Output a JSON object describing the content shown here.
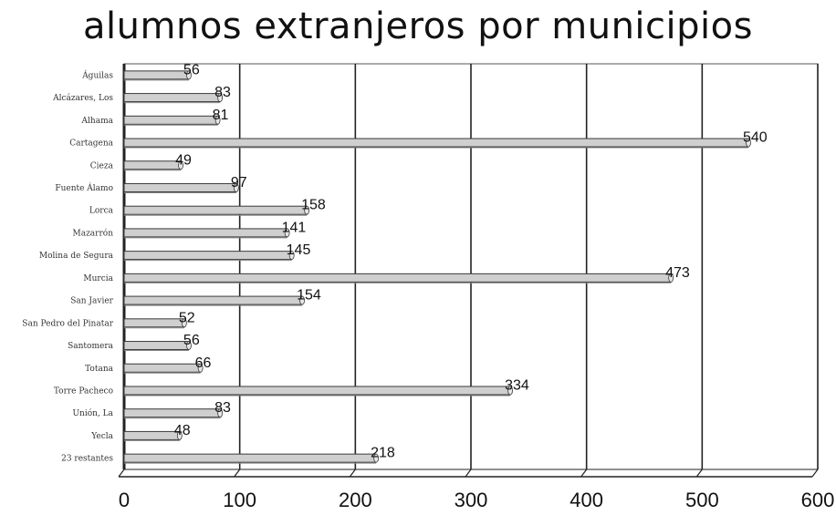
{
  "chart_data": {
    "type": "bar",
    "orientation": "horizontal",
    "title": "alumnos extranjeros por municipios",
    "xlabel": "",
    "ylabel": "",
    "categories": [
      "Águilas",
      "Alcázares, Los",
      "Alhama",
      "Cartagena",
      "Cieza",
      "Fuente Álamo",
      "Lorca",
      "Mazarrón",
      "Molina de Segura",
      "Murcia",
      "San Javier",
      "San Pedro del Pinatar",
      "Santomera",
      "Totana",
      "Torre Pacheco",
      "Unión, La",
      "Yecla",
      "23 restantes"
    ],
    "values": [
      56,
      83,
      81,
      540,
      49,
      97,
      158,
      141,
      145,
      473,
      154,
      52,
      56,
      66,
      334,
      83,
      48,
      218
    ],
    "value_labels": [
      "56",
      "83",
      "81",
      "540",
      "49",
      "97",
      "158",
      "141",
      "145",
      "473",
      "154",
      "52",
      "56",
      "66",
      "334",
      "83",
      "48",
      "218"
    ],
    "xlim": [
      0,
      600
    ],
    "xticks": [
      "0",
      "100",
      "200",
      "300",
      "400",
      "500",
      "600"
    ],
    "grid": true,
    "legend": "none",
    "colors": {
      "bar_fill": "#cfcfcf",
      "bar_stroke": "#3a3a3a",
      "grid": "#222222",
      "plot_border": "#555555"
    }
  }
}
